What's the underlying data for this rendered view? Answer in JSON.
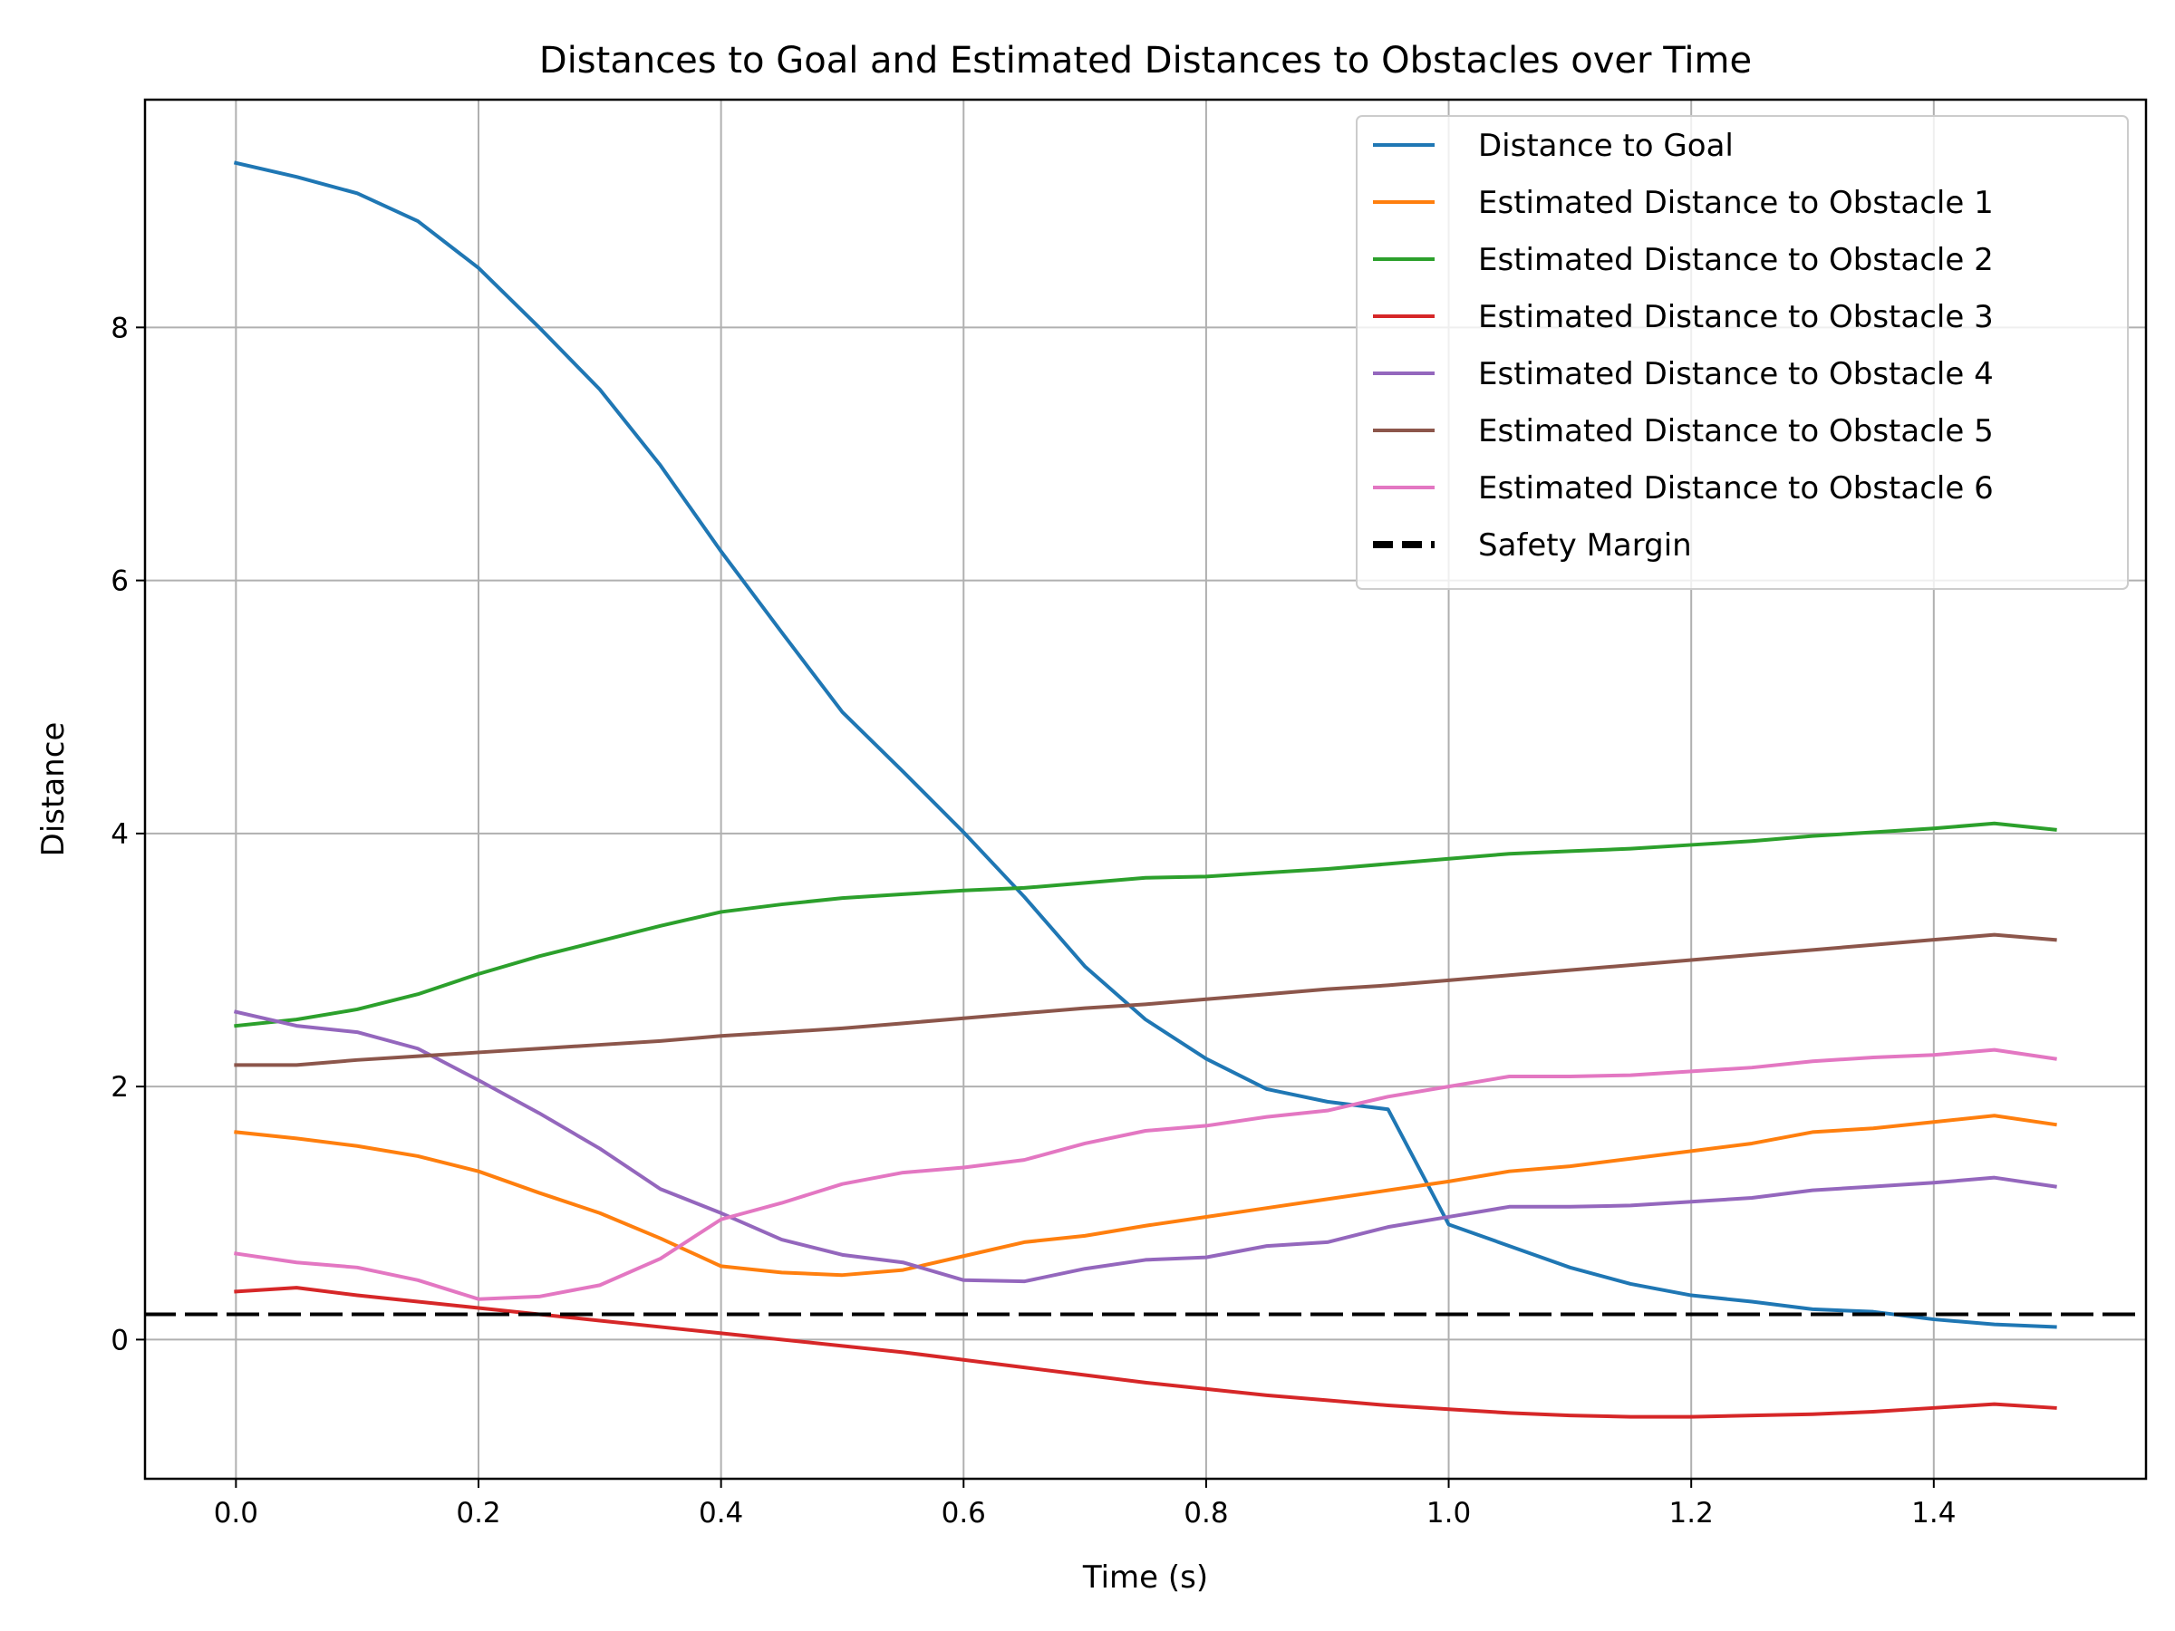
{
  "chart_data": {
    "type": "line",
    "title": "Distances to Goal and Estimated Distances to Obstacles over Time",
    "xlabel": "Time (s)",
    "ylabel": "Distance",
    "xlim": [
      -0.075,
      1.575
    ],
    "ylim": [
      -1.1,
      9.8
    ],
    "xticks": [
      0.0,
      0.2,
      0.4,
      0.6,
      0.8,
      1.0,
      1.2,
      1.4
    ],
    "xtick_labels": [
      "0.0",
      "0.2",
      "0.4",
      "0.6",
      "0.8",
      "1.0",
      "1.2",
      "1.4"
    ],
    "yticks": [
      0,
      2,
      4,
      6,
      8
    ],
    "ytick_labels": [
      "0",
      "2",
      "4",
      "6",
      "8"
    ],
    "grid": true,
    "legend_position": "top-right",
    "x": [
      0.0,
      0.05,
      0.1,
      0.15,
      0.2,
      0.25,
      0.3,
      0.35,
      0.4,
      0.45,
      0.5,
      0.55,
      0.6,
      0.65,
      0.7,
      0.75,
      0.8,
      0.85,
      0.9,
      0.95,
      1.0,
      1.05,
      1.1,
      1.15,
      1.2,
      1.25,
      1.3,
      1.35,
      1.4,
      1.45,
      1.5
    ],
    "series": [
      {
        "name": "Distance to Goal",
        "color": "#1f77b4",
        "style": "solid",
        "values": [
          9.3,
          9.19,
          9.06,
          8.84,
          8.47,
          8.0,
          7.51,
          6.91,
          6.23,
          5.59,
          4.96,
          4.49,
          4.01,
          3.5,
          2.95,
          2.53,
          2.22,
          1.98,
          1.88,
          1.82,
          0.91,
          0.74,
          0.57,
          0.44,
          0.35,
          0.3,
          0.24,
          0.22,
          0.16,
          0.12,
          0.1
        ]
      },
      {
        "name": "Estimated Distance to Obstacle 1",
        "color": "#ff7f0e",
        "style": "solid",
        "values": [
          1.64,
          1.59,
          1.53,
          1.45,
          1.33,
          1.16,
          1.0,
          0.8,
          0.58,
          0.53,
          0.51,
          0.55,
          0.66,
          0.77,
          0.82,
          0.9,
          0.97,
          1.04,
          1.11,
          1.18,
          1.25,
          1.33,
          1.37,
          1.43,
          1.49,
          1.55,
          1.64,
          1.67,
          1.72,
          1.77,
          1.7
        ]
      },
      {
        "name": "Estimated Distance to Obstacle 2",
        "color": "#2ca02c",
        "style": "solid",
        "values": [
          2.48,
          2.53,
          2.61,
          2.73,
          2.89,
          3.03,
          3.15,
          3.27,
          3.38,
          3.44,
          3.49,
          3.52,
          3.55,
          3.57,
          3.61,
          3.65,
          3.66,
          3.69,
          3.72,
          3.76,
          3.8,
          3.84,
          3.86,
          3.88,
          3.91,
          3.94,
          3.98,
          4.01,
          4.04,
          4.08,
          4.03
        ]
      },
      {
        "name": "Estimated Distance to Obstacle 3",
        "color": "#d62728",
        "style": "solid",
        "values": [
          0.38,
          0.41,
          0.35,
          0.3,
          0.25,
          0.2,
          0.15,
          0.1,
          0.05,
          0.0,
          -0.05,
          -0.1,
          -0.16,
          -0.22,
          -0.28,
          -0.34,
          -0.39,
          -0.44,
          -0.48,
          -0.52,
          -0.55,
          -0.58,
          -0.6,
          -0.61,
          -0.61,
          -0.6,
          -0.59,
          -0.57,
          -0.54,
          -0.51,
          -0.54
        ]
      },
      {
        "name": "Estimated Distance to Obstacle 4",
        "color": "#9467bd",
        "style": "solid",
        "values": [
          2.59,
          2.48,
          2.43,
          2.3,
          2.05,
          1.79,
          1.51,
          1.19,
          1.0,
          0.79,
          0.67,
          0.61,
          0.47,
          0.46,
          0.56,
          0.63,
          0.65,
          0.74,
          0.77,
          0.89,
          0.97,
          1.05,
          1.05,
          1.06,
          1.09,
          1.12,
          1.18,
          1.21,
          1.24,
          1.28,
          1.21
        ]
      },
      {
        "name": "Estimated Distance to Obstacle 5",
        "color": "#8c564b",
        "style": "solid",
        "values": [
          2.17,
          2.17,
          2.21,
          2.24,
          2.27,
          2.3,
          2.33,
          2.36,
          2.4,
          2.43,
          2.46,
          2.5,
          2.54,
          2.58,
          2.62,
          2.65,
          2.69,
          2.73,
          2.77,
          2.8,
          2.84,
          2.88,
          2.92,
          2.96,
          3.0,
          3.04,
          3.08,
          3.12,
          3.16,
          3.2,
          3.16
        ]
      },
      {
        "name": "Estimated Distance to Obstacle 6",
        "color": "#e377c2",
        "style": "solid",
        "values": [
          0.68,
          0.61,
          0.57,
          0.47,
          0.32,
          0.34,
          0.43,
          0.64,
          0.95,
          1.08,
          1.23,
          1.32,
          1.36,
          1.42,
          1.55,
          1.65,
          1.69,
          1.76,
          1.81,
          1.92,
          2.0,
          2.08,
          2.08,
          2.09,
          2.12,
          2.15,
          2.2,
          2.23,
          2.25,
          2.29,
          2.22
        ]
      },
      {
        "name": "Safety Margin",
        "color": "#000000",
        "style": "dashed",
        "constant": 0.2
      }
    ]
  }
}
